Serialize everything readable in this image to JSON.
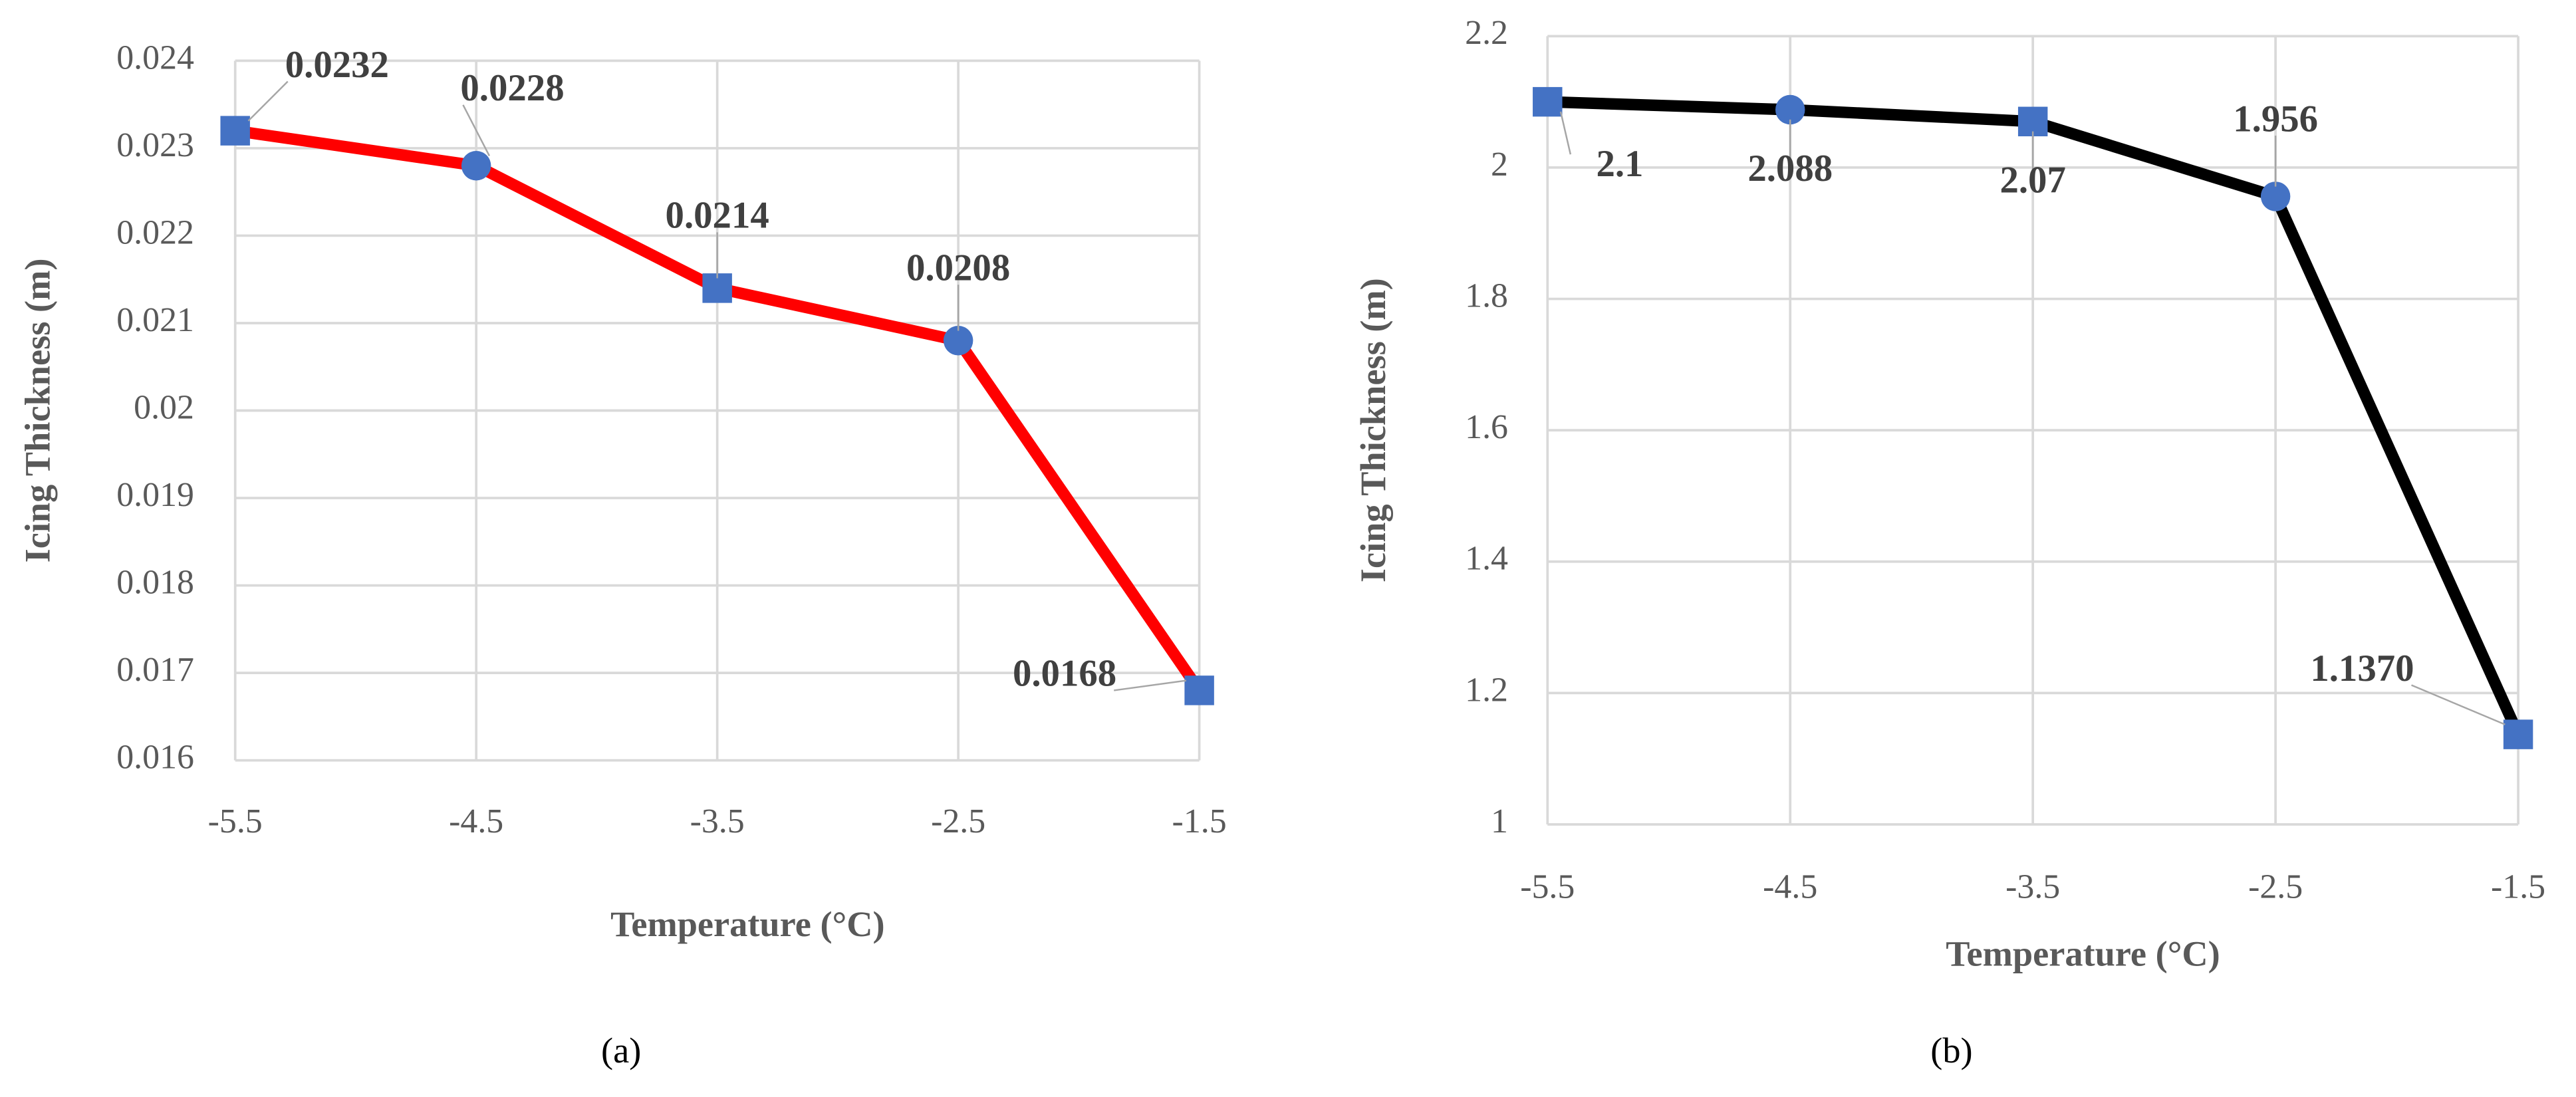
{
  "chart_data": [
    {
      "type": "line",
      "caption": "(a)",
      "x_label": "Temperature (°C)",
      "y_label": "Icing Thickness (m)",
      "x": [
        -5.5,
        -4.5,
        -3.5,
        -2.5,
        -1.5
      ],
      "series": [
        {
          "color": "#ff0000",
          "marker_color": "#4472c4",
          "marker_shapes": [
            "square",
            "circle",
            "square",
            "circle",
            "square"
          ],
          "values": [
            0.0232,
            0.0228,
            0.0214,
            0.0208,
            0.0168
          ]
        }
      ],
      "xlim": [
        -5.5,
        -1.5
      ],
      "xticks": [
        -5.5,
        -4.5,
        -3.5,
        -2.5,
        -1.5
      ],
      "ylim": [
        0.016,
        0.024
      ],
      "yticks": [
        0.016,
        0.017,
        0.018,
        0.019,
        0.02,
        0.021,
        0.022,
        0.023,
        0.024
      ],
      "grid": true
    },
    {
      "type": "line",
      "caption": "(b)",
      "x_label": "Temperature (°C)",
      "y_label": "Icing Thickness (m)",
      "x": [
        -5.5,
        -4.5,
        -3.5,
        -2.5,
        -1.5
      ],
      "series": [
        {
          "color": "#000000",
          "marker_color": "#4472c4",
          "marker_shapes": [
            "square",
            "circle",
            "square",
            "circle",
            "square"
          ],
          "values": [
            2.1,
            2.088,
            2.07,
            1.956,
            1.137
          ],
          "value_labels": [
            "2.1",
            "2.088",
            "2.07",
            "1.956",
            "1.1370"
          ]
        }
      ],
      "xlim": [
        -5.5,
        -1.5
      ],
      "xticks": [
        -5.5,
        -4.5,
        -3.5,
        -2.5,
        -1.5
      ],
      "ylim": [
        1,
        2.2
      ],
      "yticks": [
        1,
        1.2,
        1.4,
        1.6,
        1.8,
        2,
        2.2
      ],
      "grid": true
    }
  ]
}
